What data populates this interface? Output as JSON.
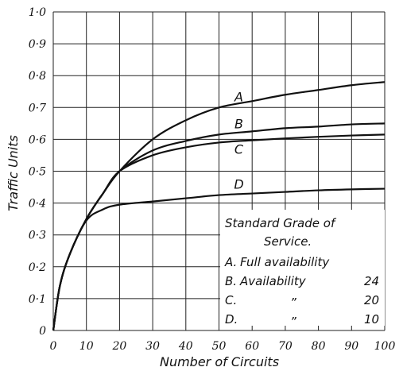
{
  "chart_data": {
    "type": "line",
    "title": "",
    "xlabel": "Number of Circuits",
    "ylabel": "Traffic Units",
    "xlim": [
      0,
      100
    ],
    "ylim": [
      0,
      1.0
    ],
    "grid": true,
    "x_ticks": [
      "0",
      "10",
      "20",
      "30",
      "40",
      "50",
      "60",
      "70",
      "80",
      "90",
      "100"
    ],
    "y_ticks": [
      "0",
      "0·1",
      "0·2",
      "0·3",
      "0·4",
      "0·5",
      "0·6",
      "0·7",
      "0·8",
      "0·9",
      "1·0"
    ],
    "series": [
      {
        "name": "A",
        "x": [
          0,
          2,
          5,
          10,
          15,
          20,
          30,
          40,
          50,
          60,
          70,
          80,
          90,
          100
        ],
        "y": [
          0,
          0.14,
          0.24,
          0.35,
          0.43,
          0.5,
          0.6,
          0.66,
          0.7,
          0.72,
          0.74,
          0.755,
          0.77,
          0.78
        ]
      },
      {
        "name": "B",
        "x": [
          0,
          2,
          5,
          10,
          15,
          20,
          30,
          40,
          50,
          60,
          70,
          80,
          90,
          100
        ],
        "y": [
          0,
          0.14,
          0.24,
          0.35,
          0.43,
          0.5,
          0.565,
          0.595,
          0.615,
          0.625,
          0.635,
          0.64,
          0.647,
          0.65
        ]
      },
      {
        "name": "C",
        "x": [
          0,
          2,
          5,
          10,
          15,
          20,
          30,
          40,
          50,
          60,
          70,
          80,
          90,
          100
        ],
        "y": [
          0,
          0.14,
          0.24,
          0.35,
          0.43,
          0.5,
          0.55,
          0.575,
          0.59,
          0.597,
          0.603,
          0.608,
          0.612,
          0.615
        ]
      },
      {
        "name": "D",
        "x": [
          0,
          2,
          5,
          10,
          15,
          20,
          30,
          40,
          50,
          60,
          70,
          80,
          90,
          100
        ],
        "y": [
          0,
          0.14,
          0.24,
          0.345,
          0.38,
          0.395,
          0.405,
          0.415,
          0.425,
          0.43,
          0.435,
          0.44,
          0.443,
          0.445
        ]
      }
    ],
    "curve_labels": [
      {
        "text": "A",
        "x": 56,
        "y": 0.72
      },
      {
        "text": "B",
        "x": 56,
        "y": 0.635
      },
      {
        "text": "C",
        "x": 56,
        "y": 0.555
      },
      {
        "text": "D",
        "x": 56,
        "y": 0.445
      }
    ],
    "legend": {
      "placement": "bottom-right",
      "title_lines": [
        "Standard Grade of",
        "Service."
      ],
      "rows": [
        {
          "key": "A.",
          "label": "Full availability",
          "value": ""
        },
        {
          "key": "B.",
          "label": "Availability",
          "value": "24"
        },
        {
          "key": "C.",
          "label": "”",
          "value": "20"
        },
        {
          "key": "D.",
          "label": "”",
          "value": "10"
        }
      ]
    }
  }
}
